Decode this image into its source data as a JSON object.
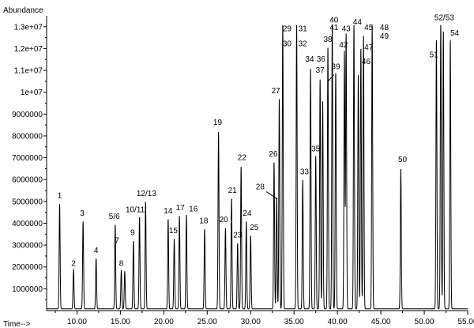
{
  "chart_data": {
    "type": "line",
    "ylabel": "Abundance",
    "xlabel": "Time-->",
    "xlim": [
      6.5,
      55.0
    ],
    "ylim": [
      0,
      13500000
    ],
    "x_ticks": [
      "10.00",
      "15.00",
      "20.00",
      "25.00",
      "30.00",
      "35.00",
      "40.00",
      "45.00",
      "50.00",
      "55.00"
    ],
    "x_tick_values": [
      10,
      15,
      20,
      25,
      30,
      35,
      40,
      45,
      50,
      55
    ],
    "y_ticks": [
      "1000000",
      "2000000",
      "3000000",
      "4000000",
      "5000000",
      "6000000",
      "7000000",
      "8000000",
      "9000000",
      "1e+07",
      "1.1e+07",
      "1.2e+07",
      "1.3e+07"
    ],
    "y_tick_values": [
      1000000,
      2000000,
      3000000,
      4000000,
      5000000,
      6000000,
      7000000,
      8000000,
      9000000,
      10000000,
      11000000,
      12000000,
      13000000
    ],
    "baseline": 80000,
    "peaks": [
      {
        "rt": 8.0,
        "height": 4800000
      },
      {
        "rt": 9.6,
        "height": 1800000
      },
      {
        "rt": 10.7,
        "height": 4000000
      },
      {
        "rt": 12.2,
        "height": 2300000
      },
      {
        "rt": 14.4,
        "height": 3850000
      },
      {
        "rt": 15.1,
        "height": 1750000
      },
      {
        "rt": 15.5,
        "height": 1700000
      },
      {
        "rt": 16.5,
        "height": 3100000
      },
      {
        "rt": 17.2,
        "height": 4200000
      },
      {
        "rt": 17.9,
        "height": 4900000
      },
      {
        "rt": 20.5,
        "height": 4100000
      },
      {
        "rt": 21.2,
        "height": 3200000
      },
      {
        "rt": 21.8,
        "height": 4250000
      },
      {
        "rt": 22.6,
        "height": 4300000
      },
      {
        "rt": 24.7,
        "height": 3650000
      },
      {
        "rt": 26.3,
        "height": 8100000
      },
      {
        "rt": 27.1,
        "height": 3700000
      },
      {
        "rt": 27.8,
        "height": 5050000
      },
      {
        "rt": 28.5,
        "height": 3000000
      },
      {
        "rt": 28.9,
        "height": 6500000
      },
      {
        "rt": 29.5,
        "height": 4000000
      },
      {
        "rt": 30.0,
        "height": 3350000
      },
      {
        "rt": 32.7,
        "height": 6700000
      },
      {
        "rt": 33.0,
        "height": 5100000
      },
      {
        "rt": 33.3,
        "height": 9600000
      },
      {
        "rt": 33.7,
        "height": 13000000
      },
      {
        "rt": 35.3,
        "height": 13000000
      },
      {
        "rt": 36.0,
        "height": 5900000
      },
      {
        "rt": 36.9,
        "height": 11000000
      },
      {
        "rt": 37.5,
        "height": 7000000
      },
      {
        "rt": 38.0,
        "height": 10500000
      },
      {
        "rt": 38.3,
        "height": 9500000
      },
      {
        "rt": 38.9,
        "height": 11950000
      },
      {
        "rt": 39.4,
        "height": 13000000
      },
      {
        "rt": 39.8,
        "height": 10800000
      },
      {
        "rt": 40.8,
        "height": 11800000
      },
      {
        "rt": 41.0,
        "height": 12600000
      },
      {
        "rt": 41.9,
        "height": 13000000
      },
      {
        "rt": 42.4,
        "height": 10700000
      },
      {
        "rt": 42.7,
        "height": 11900000
      },
      {
        "rt": 43.0,
        "height": 12500000
      },
      {
        "rt": 44.0,
        "height": 13000000
      },
      {
        "rt": 47.3,
        "height": 6400000
      },
      {
        "rt": 51.4,
        "height": 12300000
      },
      {
        "rt": 51.9,
        "height": 13000000
      },
      {
        "rt": 52.2,
        "height": 12700000
      },
      {
        "rt": 53.0,
        "height": 12300000
      }
    ],
    "annotations": [
      {
        "text": "1",
        "x": 8.0,
        "y": 5150000
      },
      {
        "text": "2",
        "x": 9.6,
        "y": 2050000
      },
      {
        "text": "3",
        "x": 10.6,
        "y": 4350000
      },
      {
        "text": "4",
        "x": 12.2,
        "y": 2650000
      },
      {
        "text": "5/6",
        "x": 14.3,
        "y": 4200000
      },
      {
        "text": "7",
        "x": 14.6,
        "y": 3100000
      },
      {
        "text": "8",
        "x": 15.1,
        "y": 2050000
      },
      {
        "text": "9",
        "x": 16.4,
        "y": 3450000
      },
      {
        "text": "10/11",
        "x": 16.7,
        "y": 4500000
      },
      {
        "text": "12/13",
        "x": 18.0,
        "y": 5250000
      },
      {
        "text": "14",
        "x": 20.5,
        "y": 4450000
      },
      {
        "text": "15",
        "x": 21.1,
        "y": 3550000
      },
      {
        "text": "17",
        "x": 21.9,
        "y": 4600000
      },
      {
        "text": "16",
        "x": 23.4,
        "y": 4550000
      },
      {
        "text": "18",
        "x": 24.6,
        "y": 4000000
      },
      {
        "text": "19",
        "x": 26.2,
        "y": 8500000
      },
      {
        "text": "20",
        "x": 26.9,
        "y": 4050000
      },
      {
        "text": "21",
        "x": 27.9,
        "y": 5400000
      },
      {
        "text": "22",
        "x": 29.0,
        "y": 6900000
      },
      {
        "text": "23",
        "x": 28.5,
        "y": 3350000
      },
      {
        "text": "24",
        "x": 29.6,
        "y": 4350000
      },
      {
        "text": "25",
        "x": 30.4,
        "y": 3700000
      },
      {
        "text": "26",
        "x": 32.6,
        "y": 7050000
      },
      {
        "text": "27",
        "x": 32.9,
        "y": 9950000
      },
      {
        "text": "28",
        "x": 31.1,
        "y": 5550000
      },
      {
        "text": "29",
        "x": 34.2,
        "y": 12800000
      },
      {
        "text": "30",
        "x": 34.2,
        "y": 12100000
      },
      {
        "text": "31",
        "x": 36.0,
        "y": 12800000
      },
      {
        "text": "32",
        "x": 36.0,
        "y": 12100000
      },
      {
        "text": "33",
        "x": 36.2,
        "y": 6250000
      },
      {
        "text": "34",
        "x": 36.8,
        "y": 11400000
      },
      {
        "text": "35",
        "x": 37.5,
        "y": 7300000
      },
      {
        "text": "36",
        "x": 38.1,
        "y": 11400000
      },
      {
        "text": "37",
        "x": 38.0,
        "y": 10900000
      },
      {
        "text": "38",
        "x": 38.9,
        "y": 12300000
      },
      {
        "text": "39",
        "x": 39.8,
        "y": 11050000
      },
      {
        "text": "40",
        "x": 39.6,
        "y": 13200000
      },
      {
        "text": "41",
        "x": 39.6,
        "y": 12850000
      },
      {
        "text": "42",
        "x": 40.7,
        "y": 12050000
      },
      {
        "text": "43",
        "x": 41.0,
        "y": 12800000
      },
      {
        "text": "44",
        "x": 42.3,
        "y": 13100000
      },
      {
        "text": "45",
        "x": 43.6,
        "y": 12850000
      },
      {
        "text": "46",
        "x": 43.3,
        "y": 11300000
      },
      {
        "text": "47",
        "x": 43.6,
        "y": 11950000
      },
      {
        "text": "48",
        "x": 45.4,
        "y": 12850000
      },
      {
        "text": "49",
        "x": 45.4,
        "y": 12450000
      },
      {
        "text": "50",
        "x": 47.5,
        "y": 6800000
      },
      {
        "text": "51",
        "x": 51.1,
        "y": 11600000
      },
      {
        "text": "52/53",
        "x": 52.3,
        "y": 13300000
      },
      {
        "text": "54",
        "x": 53.5,
        "y": 12600000
      }
    ],
    "leader_lines": [
      {
        "from": [
          31.8,
          5450000
        ],
        "to": [
          33.1,
          5100000
        ]
      },
      {
        "from": [
          39.6,
          10800000
        ],
        "to": [
          38.9,
          10500000
        ]
      }
    ],
    "grid": false,
    "legend": "none"
  }
}
